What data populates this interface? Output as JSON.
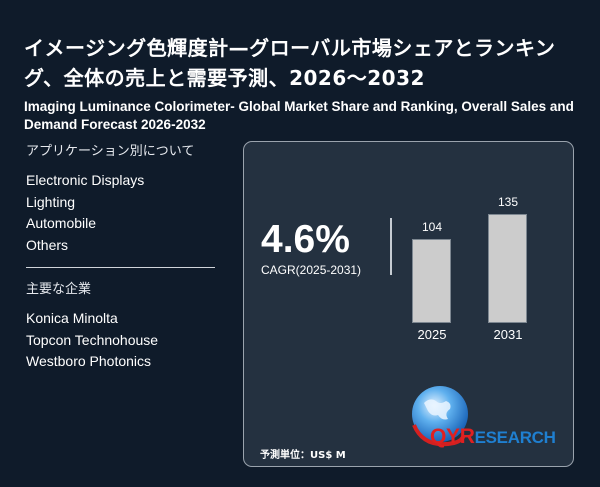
{
  "header": {
    "title_jp": "イメージング色輝度計—グローバル市場シェアとランキング、全体の売上と需要予測、2026～2032",
    "title_en": "Imaging Luminance Colorimeter- Global Market Share and Ranking, Overall Sales and Demand Forecast 2026-2032"
  },
  "applications": {
    "heading": "アプリケーション別について",
    "items": [
      "Electronic Displays",
      "Lighting",
      "Automobile",
      "Others"
    ]
  },
  "companies": {
    "heading": "主要な企業",
    "items": [
      "Konica Minolta",
      "Topcon Technohouse",
      "Westboro Photonics"
    ]
  },
  "card": {
    "cagr_value": "4.6%",
    "cagr_label": "CAGR(2025-2031)",
    "unit_label": "予測単位：US$ M",
    "logo": {
      "icon": "globe-icon",
      "qyr": "QYR",
      "research": "ESEARCH"
    }
  },
  "colors": {
    "background": "#0f1b2a",
    "card_background": "#243140",
    "bar": "#cccccc",
    "logo_red": "#e02020",
    "logo_blue": "#1f7fd0"
  },
  "chart_data": {
    "type": "bar",
    "title": "",
    "categories": [
      "2025",
      "2031"
    ],
    "values": [
      104,
      135
    ],
    "value_labels": [
      "104",
      "135"
    ],
    "xlabel": "",
    "ylabel": "",
    "unit": "US$ M",
    "annotation": "4.6% CAGR(2025-2031)",
    "grid": false,
    "legend": "none"
  }
}
